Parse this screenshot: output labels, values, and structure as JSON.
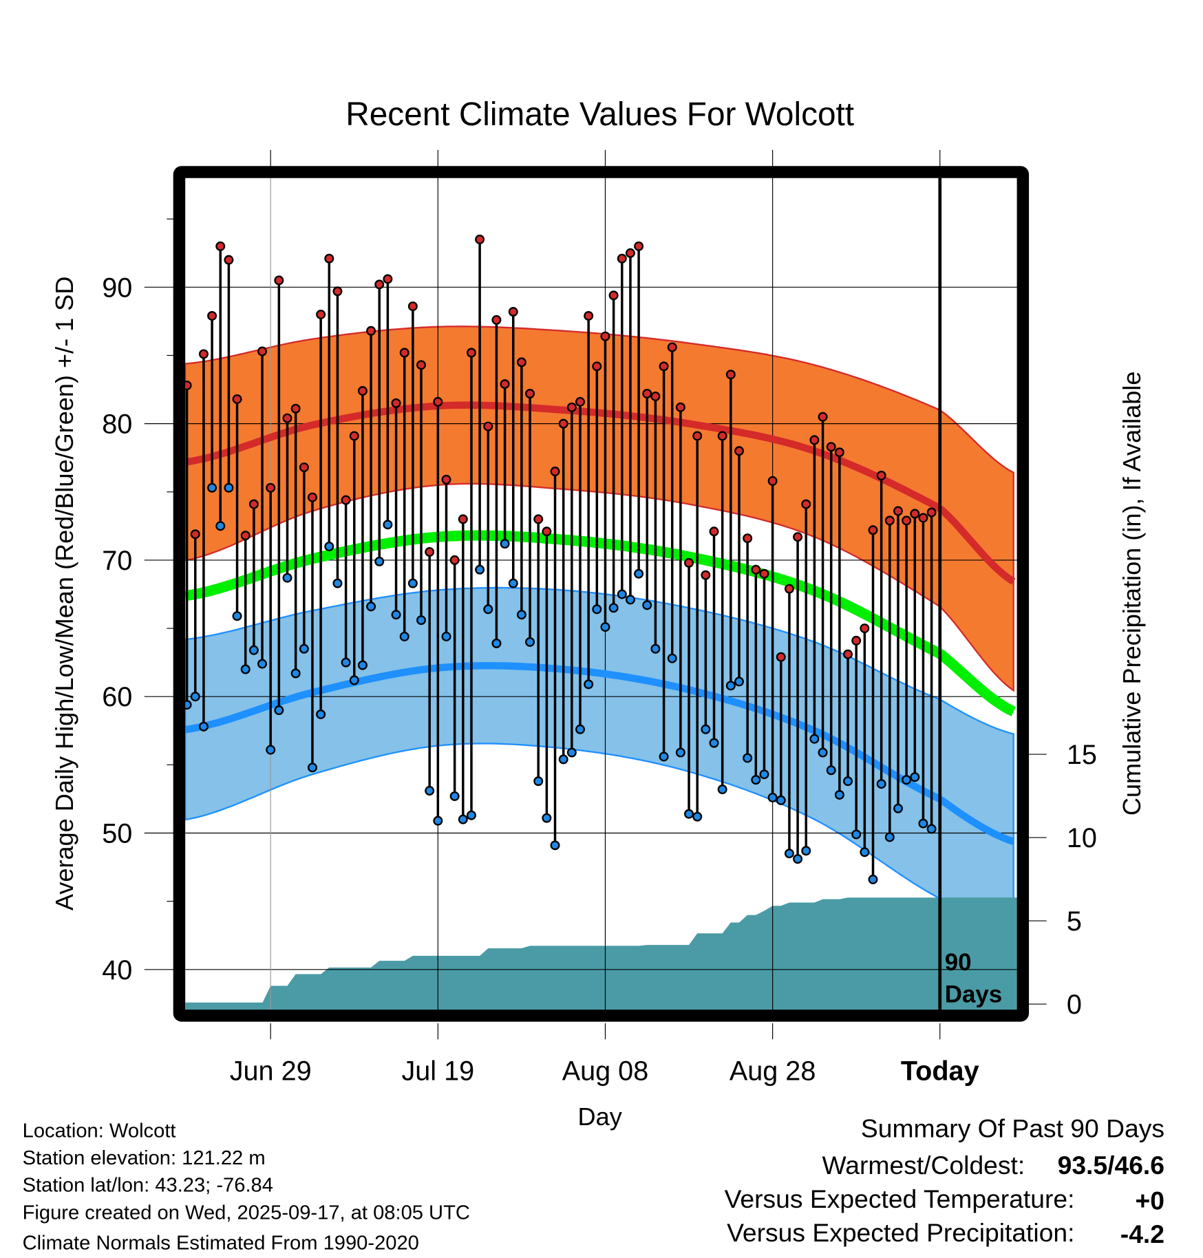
{
  "chart_data": {
    "type": "line",
    "title": "Recent Climate Values For Wolcott",
    "xlabel": "Day",
    "ylabel": "Average Daily High/Low/Mean (Red/Blue/Green) +/- 1 SD",
    "y2label": "Cumulative Precipitation (in), If Available",
    "xlim": [
      -90.2,
      9.2
    ],
    "ylim": [
      37.0,
      98.0
    ],
    "y2lim": [
      -0.38,
      49.6
    ],
    "grid": true,
    "x_ticks": [
      {
        "day": -80,
        "label": "Jun 29"
      },
      {
        "day": -60,
        "label": "Jul 19"
      },
      {
        "day": -40,
        "label": "Aug 08"
      },
      {
        "day": -20,
        "label": "Aug 28"
      },
      {
        "day": 0,
        "label": "Today"
      }
    ],
    "y_ticks": [
      40,
      50,
      60,
      70,
      80,
      90
    ],
    "y2_ticks": [
      0,
      5,
      10,
      15
    ],
    "today_marker": {
      "line1": "90",
      "line2": "Days"
    },
    "days": [
      -90,
      -89,
      -88,
      -87,
      -86,
      -85,
      -84,
      -83,
      -82,
      -81,
      -80,
      -79,
      -78,
      -77,
      -76,
      -75,
      -74,
      -73,
      -72,
      -71,
      -70,
      -69,
      -68,
      -67,
      -66,
      -65,
      -64,
      -63,
      -62,
      -61,
      -60,
      -59,
      -58,
      -57,
      -56,
      -55,
      -54,
      -53,
      -52,
      -51,
      -50,
      -49,
      -48,
      -47,
      -46,
      -45,
      -44,
      -43,
      -42,
      -41,
      -40,
      -39,
      -38,
      -37,
      -36,
      -35,
      -34,
      -33,
      -32,
      -31,
      -30,
      -29,
      -28,
      -27,
      -26,
      -25,
      -24,
      -23,
      -22,
      -21,
      -20,
      -19,
      -18,
      -17,
      -16,
      -15,
      -14,
      -13,
      -12,
      -11,
      -10,
      -9,
      -8,
      -7,
      -6,
      -5,
      -4,
      -3,
      -2,
      -1
    ],
    "highs": [
      82.8,
      71.9,
      85.1,
      87.9,
      93.0,
      92.0,
      81.8,
      71.8,
      74.1,
      85.3,
      75.3,
      90.5,
      80.4,
      81.1,
      76.8,
      74.6,
      88.0,
      92.1,
      89.7,
      74.4,
      79.1,
      82.4,
      86.8,
      90.2,
      90.6,
      81.5,
      85.2,
      88.6,
      84.3,
      70.6,
      81.6,
      75.9,
      70.0,
      73.0,
      85.2,
      93.5,
      79.8,
      87.6,
      82.9,
      88.2,
      84.5,
      82.2,
      73.0,
      72.1,
      76.5,
      80.0,
      81.2,
      81.6,
      87.9,
      84.2,
      86.4,
      89.4,
      92.1,
      92.5,
      93.0,
      82.2,
      82.0,
      84.2,
      85.6,
      81.2,
      69.8,
      79.1,
      68.9,
      72.1,
      79.1,
      83.6,
      78.0,
      71.6,
      69.3,
      69.0,
      75.8,
      62.9,
      67.9,
      71.7,
      74.1,
      78.8,
      80.5,
      78.3,
      77.9,
      63.1,
      64.1,
      65.0,
      72.2,
      76.2,
      72.9,
      73.6,
      72.9,
      73.4,
      73.1,
      73.5
    ],
    "lows": [
      59.4,
      60.0,
      57.8,
      75.3,
      72.5,
      75.3,
      65.9,
      62.0,
      63.4,
      62.4,
      56.1,
      59.0,
      68.7,
      61.7,
      63.5,
      54.8,
      58.7,
      71.0,
      68.3,
      62.5,
      61.2,
      62.3,
      66.6,
      69.9,
      72.6,
      66.0,
      64.4,
      68.3,
      65.6,
      53.1,
      50.9,
      64.4,
      52.7,
      51.0,
      51.3,
      69.3,
      66.4,
      63.9,
      71.2,
      68.3,
      66.0,
      64.0,
      53.8,
      51.1,
      49.1,
      55.4,
      55.9,
      57.6,
      60.9,
      66.4,
      65.1,
      66.5,
      67.5,
      67.1,
      69.0,
      66.7,
      63.5,
      55.6,
      62.8,
      55.9,
      51.4,
      51.2,
      57.6,
      56.6,
      53.2,
      60.8,
      61.1,
      55.5,
      53.9,
      54.3,
      52.6,
      52.4,
      48.5,
      48.1,
      48.7,
      56.9,
      55.9,
      54.6,
      52.8,
      53.8,
      49.9,
      48.6,
      46.6,
      53.6,
      49.7,
      51.8,
      53.9,
      54.1,
      50.7,
      50.3
    ],
    "normals": {
      "days": [
        -90,
        -75,
        -60,
        -45,
        -30,
        -15,
        0,
        9.2
      ],
      "high_mean": [
        77.2,
        79.9,
        81.3,
        81.0,
        80.0,
        78.0,
        73.8,
        68.3
      ],
      "high_sd": [
        7.2,
        6.3,
        5.8,
        5.8,
        5.9,
        6.3,
        7.2,
        8.0
      ],
      "low_mean": [
        57.6,
        60.3,
        62.1,
        62.0,
        60.5,
        57.5,
        52.5,
        49.3
      ],
      "low_sd": [
        6.6,
        6.0,
        5.7,
        5.8,
        6.0,
        6.5,
        7.3,
        7.9
      ],
      "avg_mean": [
        67.4,
        70.1,
        71.7,
        71.5,
        70.25,
        67.75,
        63.15,
        58.8
      ]
    },
    "precip_cumulative": {
      "days": [
        -90,
        -83,
        -80,
        -77,
        -73,
        -67,
        -63,
        -54,
        -49,
        -35,
        -29,
        -25,
        -23,
        -21,
        -20,
        -18,
        -14,
        -11,
        9.2
      ],
      "values": [
        0,
        0.05,
        1.1,
        1.8,
        2.2,
        2.6,
        2.9,
        3.35,
        3.5,
        3.55,
        4.25,
        4.9,
        5.35,
        5.6,
        5.9,
        6.1,
        6.3,
        6.4,
        6.4
      ]
    }
  },
  "footer": {
    "location": "Location: Wolcott",
    "elevation": "Station elevation: 121.22 m",
    "latlon": "Station lat/lon: 43.23; -76.84",
    "created": "Figure created on Wed, 2025-09-17, at 08:05 UTC",
    "normals": "Climate Normals Estimated From 1990-2020"
  },
  "summary": {
    "title": "Summary Of Past 90 Days",
    "warmest_label": "Warmest/Coldest:",
    "warmest_value": "93.5/46.6",
    "temp_label": "Versus Expected Temperature:",
    "temp_value": "+0",
    "precip_label": "Versus Expected Precipitation:",
    "precip_value": "-4.2"
  },
  "colors": {
    "high_band": "#F47A30",
    "high_line": "#D42A2A",
    "low_band": "#85C1E8",
    "low_line": "#1E90FF",
    "mean_line": "#00EE00",
    "precip": "#4A9BA5",
    "high_dot": "#D42A2A",
    "low_dot": "#1E88E5",
    "temp_value": "#D42A2A",
    "precip_value": "#A0522D"
  }
}
